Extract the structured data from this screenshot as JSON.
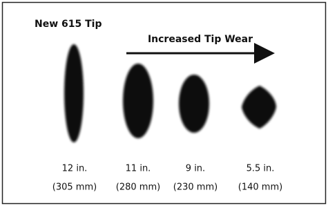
{
  "title": "New 615 Tip",
  "arrow_label": "Increased Tip Wear",
  "patterns": [
    {
      "length": "12 in.",
      "metric": "(305 mm)"
    },
    {
      "length": "11 in.",
      "metric": "(280 mm)"
    },
    {
      "length": "9 in.",
      "metric": "(230 mm)"
    },
    {
      "length": "5.5 in.",
      "metric": "(140 mm)"
    }
  ]
}
